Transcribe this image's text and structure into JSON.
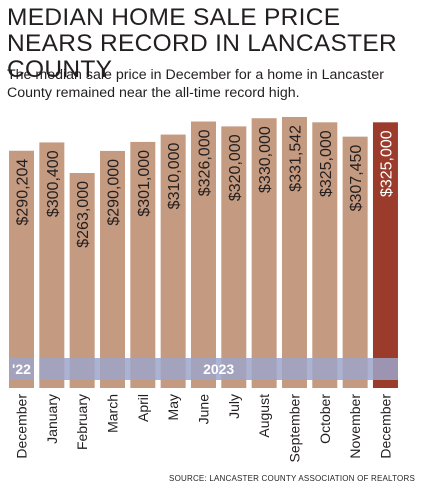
{
  "title": "MEDIAN HOME SALE PRICE NEARS RECORD IN LANCASTER COUNTY",
  "subtitle": "The median sale price in December for a home in Lancaster County remained near the all-time record high.",
  "source": "SOURCE: LANCASTER COUNTY ASSOCIATION OF REALTORS",
  "colors": {
    "bar": "#c49a80",
    "highlight": "#9b3b2c",
    "band": "#9da4c9",
    "band_text": "#ffffff",
    "text": "#231f20"
  },
  "chart_data": {
    "type": "bar",
    "categories": [
      "December",
      "January",
      "February",
      "March",
      "April",
      "May",
      "June",
      "July",
      "August",
      "September",
      "October",
      "November",
      "December"
    ],
    "values": [
      290204,
      300400,
      263000,
      290000,
      301000,
      310000,
      326000,
      320000,
      330000,
      331542,
      325000,
      307450,
      325000
    ],
    "labels": [
      "$290,204",
      "$300,400",
      "$263,000",
      "$290,000",
      "$301,000",
      "$310,000",
      "$326,000",
      "$320,000",
      "$330,000",
      "$331,542",
      "$325,000",
      "$307,450",
      "$325,000"
    ],
    "highlight_index": 12,
    "year_bands": [
      {
        "label": "'22",
        "start": 0,
        "end": 0
      },
      {
        "label": "2023",
        "start": 1,
        "end": 12
      }
    ],
    "xlabel": "",
    "ylabel": "",
    "ylim": [
      0,
      340000
    ],
    "grid": false,
    "legend": "none"
  }
}
